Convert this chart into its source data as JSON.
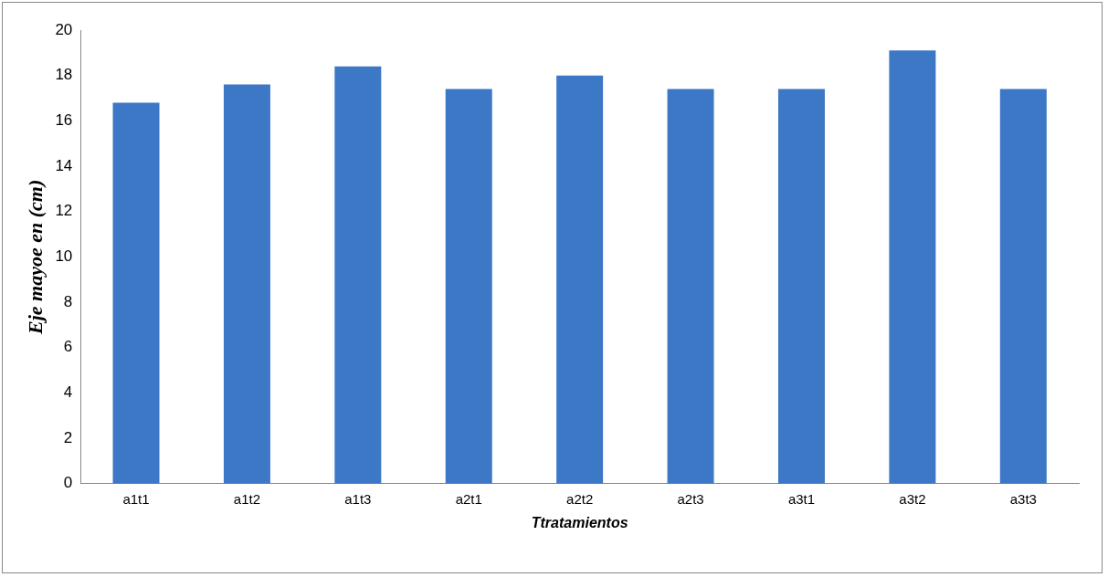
{
  "chart_data": {
    "type": "bar",
    "categories": [
      "a1t1",
      "a1t2",
      "a1t3",
      "a2t1",
      "a2t2",
      "a2t3",
      "a3t1",
      "a3t2",
      "a3t3"
    ],
    "values": [
      16.8,
      17.6,
      18.4,
      17.4,
      18.0,
      17.4,
      17.4,
      19.1,
      17.4
    ],
    "color": "#3c78c6",
    "xlabel": "Ttratamientos",
    "ylabel": "Eje mayoe en (cm)",
    "ylim": [
      0,
      20
    ],
    "yticks": [
      0,
      2,
      4,
      6,
      8,
      10,
      12,
      14,
      16,
      18,
      20
    ],
    "grid": false,
    "legend": false
  }
}
